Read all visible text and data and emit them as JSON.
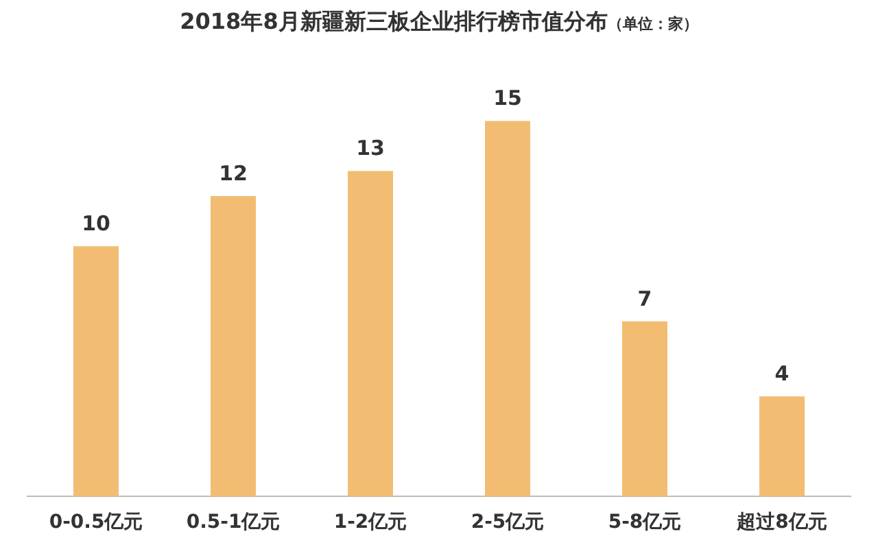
{
  "chart_data": {
    "type": "bar",
    "title": "2018年8月新疆新三板企业排行榜市值分布",
    "subtitle": "（单位：家）",
    "categories": [
      "0-0.5亿元",
      "0.5-1亿元",
      "1-2亿元",
      "2-5亿元",
      "5-8亿元",
      "超过8亿元"
    ],
    "values": [
      10,
      12,
      13,
      15,
      7,
      4
    ],
    "color": "#f2bd72",
    "data_labels": true,
    "grid": false,
    "legend": false
  }
}
